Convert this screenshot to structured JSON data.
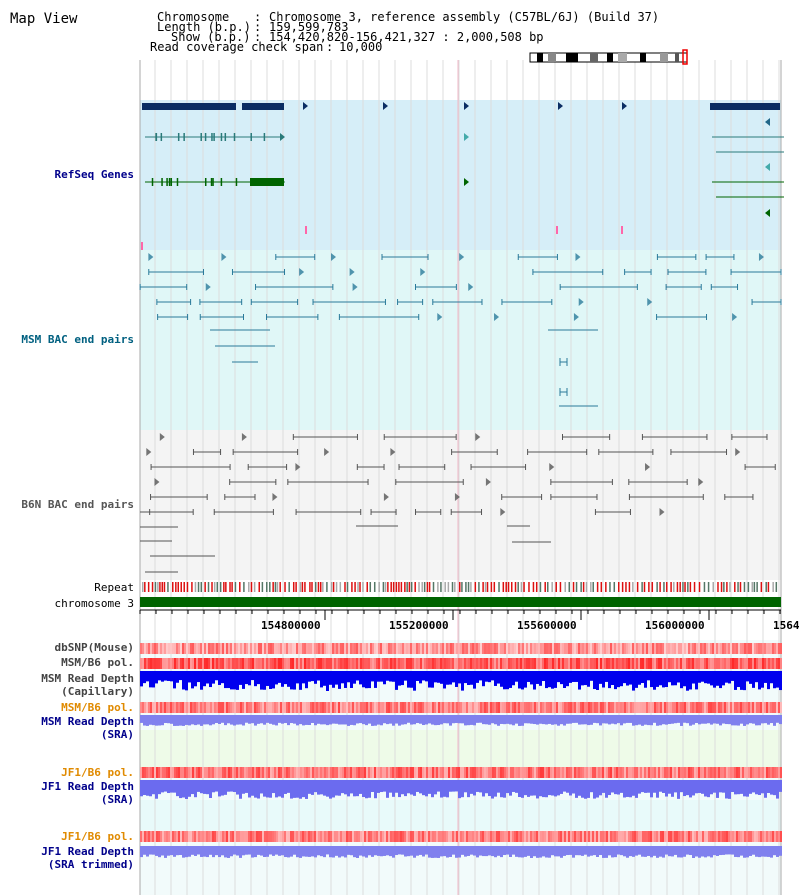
{
  "page": {
    "title": "Map View"
  },
  "header": {
    "chromosome_label": "Chromosome",
    "chromosome_value": "Chromosome 3, reference assembly (C57BL/6J) (Build 37)",
    "length_label": "Length (b.p.)",
    "length_value": "159,599,783",
    "show_label": "Show (b.p.)",
    "show_value": "154,420,820-156,421,327 : 2,000,508 bp",
    "coverage_label": "Read coverage check span",
    "coverage_value": "10,000"
  },
  "tracks": {
    "refseq": "RefSeq Genes",
    "msm_bac": "MSM BAC end pairs",
    "b6n_bac": "B6N BAC end pairs",
    "repeat": "Repeat",
    "chromosome": "chromosome 3",
    "dbsnp": "dbSNP(Mouse)",
    "msm_pol": "MSM/B6 pol.",
    "msm_depth_cap_1": "MSM Read Depth",
    "msm_depth_cap_2": "(Capillary)",
    "msm_pol2": "MSM/B6 pol.",
    "msm_depth_sra_1": "MSM Read Depth",
    "msm_depth_sra_2": "(SRA)",
    "jf1_pol": "JF1/B6 pol.",
    "jf1_depth_sra_1": "JF1 Read Depth",
    "jf1_depth_sra_2": "(SRA)",
    "jf1_pol2": "JF1/B6 pol.",
    "jf1_trim_1": "JF1 Read Depth",
    "jf1_trim_2": "(SRA trimmed)"
  },
  "axis": {
    "ticks": [
      "154800000",
      "155200000",
      "155600000",
      "156000000",
      "1564"
    ]
  },
  "colors": {
    "refseq_bg": "#d6eef8",
    "msm_bg": "#e0f7f7",
    "b6n_bg": "#f4f4f4",
    "gene_navy": "#0b2d63",
    "gene_teal": "#2a7a7a",
    "gene_green": "#006400",
    "label_blue": "#00008b",
    "label_teal": "#006080",
    "label_gray": "#444444",
    "label_orange": "#e08a00",
    "depth_blue": "#0000ee",
    "depth_lav": "#8080ee"
  }
}
